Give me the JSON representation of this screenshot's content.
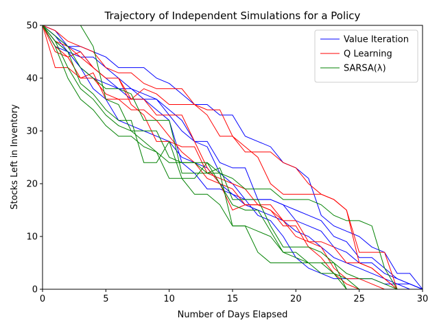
{
  "chart_data": {
    "type": "line",
    "title": "Trajectory of Independent Simulations for a Policy",
    "xlabel": "Number of Days Elapsed",
    "ylabel": "Stocks Left in Inventory",
    "xlim": [
      0,
      30
    ],
    "ylim": [
      0,
      50
    ],
    "xticks": [
      "0",
      "5",
      "10",
      "15",
      "20",
      "25",
      "30"
    ],
    "yticks": [
      "0",
      "10",
      "20",
      "30",
      "40",
      "50"
    ],
    "grid": false,
    "legend_position": "top-right",
    "legend": [
      {
        "name": "Value Iteration",
        "color": "#0000ff"
      },
      {
        "name": "Q Learning",
        "color": "#ff0000"
      },
      {
        "name": "SARSA(λ)",
        "color": "#008000"
      }
    ],
    "series": [
      {
        "group": "Value Iteration",
        "color": "#0000ff",
        "x": [
          0,
          1,
          2,
          3,
          4,
          5,
          6,
          7,
          8,
          9,
          10,
          11,
          12,
          13,
          14,
          15,
          16,
          17,
          18,
          19,
          20,
          21,
          22,
          23,
          24,
          25,
          26,
          27,
          28,
          29,
          30
        ],
        "y": [
          50,
          49,
          46,
          46,
          45,
          44,
          42,
          42,
          42,
          40,
          39,
          37,
          35,
          35,
          33,
          33,
          29,
          28,
          27,
          24,
          23,
          21,
          14,
          12,
          11,
          10,
          8,
          7,
          3,
          3,
          0
        ]
      },
      {
        "group": "Value Iteration",
        "color": "#0000ff",
        "x": [
          0,
          1,
          2,
          3,
          4,
          5,
          6,
          7,
          8,
          9,
          10,
          11,
          12,
          13,
          14,
          15,
          16,
          17,
          18,
          19,
          20,
          21,
          22,
          23,
          24,
          25,
          26,
          27,
          28,
          29,
          30
        ],
        "y": [
          50,
          48,
          45,
          44,
          44,
          42,
          40,
          38,
          37,
          36,
          33,
          30,
          28,
          28,
          24,
          23,
          23,
          17,
          17,
          16,
          15,
          14,
          13,
          10,
          9,
          6,
          6,
          4,
          2,
          1,
          0
        ]
      },
      {
        "group": "Value Iteration",
        "color": "#0000ff",
        "x": [
          0,
          1,
          2,
          3,
          4,
          5,
          6,
          7,
          8,
          9,
          10,
          11,
          12,
          13,
          14,
          15,
          16,
          17,
          18,
          19,
          20,
          21,
          22,
          23,
          24,
          25,
          26,
          27,
          28,
          29,
          30
        ],
        "y": [
          50,
          48,
          46,
          45,
          42,
          40,
          38,
          36,
          36,
          36,
          34,
          32,
          28,
          27,
          22,
          20,
          17,
          17,
          17,
          16,
          13,
          12,
          11,
          8,
          7,
          5,
          5,
          3,
          2,
          1,
          0
        ]
      },
      {
        "group": "Value Iteration",
        "color": "#0000ff",
        "x": [
          0,
          1,
          2,
          3,
          4,
          5,
          6,
          7,
          8,
          9,
          10,
          11,
          12,
          13,
          14,
          15,
          16,
          17,
          18,
          19,
          20,
          21,
          22,
          23,
          24,
          25,
          26,
          27,
          28,
          29,
          30
        ],
        "y": [
          50,
          47,
          45,
          42,
          40,
          39,
          38,
          38,
          36,
          34,
          32,
          24,
          22,
          19,
          19,
          18,
          16,
          15,
          14,
          13,
          11,
          10,
          8,
          6,
          5,
          4,
          3,
          2,
          1,
          1,
          0
        ]
      },
      {
        "group": "Value Iteration",
        "color": "#0000ff",
        "x": [
          0,
          1,
          2,
          3,
          4,
          5,
          6,
          7,
          8,
          9,
          10,
          11,
          12,
          13,
          14,
          15,
          16,
          17,
          18,
          19,
          20,
          21,
          22,
          23,
          24,
          25,
          26,
          27,
          28,
          29,
          30
        ],
        "y": [
          50,
          46,
          45,
          42,
          38,
          36,
          32,
          31,
          30,
          29,
          28,
          25,
          24,
          23,
          20,
          18,
          17,
          14,
          13,
          10,
          6,
          4,
          3,
          2,
          2,
          2,
          2,
          1,
          1,
          0,
          0
        ]
      },
      {
        "group": "Q Learning",
        "color": "#ff0000",
        "x": [
          0,
          1,
          2,
          3,
          4,
          5,
          6,
          7,
          8,
          9,
          10,
          11,
          12,
          13,
          14,
          15,
          16,
          17,
          18,
          19,
          20,
          21,
          22,
          23,
          24,
          25,
          26,
          27,
          28,
          29,
          30
        ],
        "y": [
          50,
          49,
          47,
          46,
          45,
          42,
          41,
          41,
          39,
          38,
          38,
          38,
          35,
          34,
          34,
          29,
          26,
          26,
          26,
          24,
          23,
          20,
          18,
          17,
          15,
          7,
          7,
          7,
          0,
          0,
          0
        ]
      },
      {
        "group": "Q Learning",
        "color": "#ff0000",
        "x": [
          0,
          1,
          2,
          3,
          4,
          5,
          6,
          7,
          8,
          9,
          10,
          11,
          12,
          13,
          14,
          15,
          16,
          17,
          18,
          19,
          20,
          21,
          22,
          23,
          24,
          25,
          26,
          27,
          28,
          29,
          30
        ],
        "y": [
          50,
          47,
          46,
          44,
          42,
          40,
          40,
          36,
          38,
          37,
          35,
          35,
          35,
          33,
          29,
          29,
          27,
          25,
          20,
          18,
          18,
          18,
          18,
          17,
          15,
          5,
          4,
          2,
          0,
          0,
          0
        ]
      },
      {
        "group": "Q Learning",
        "color": "#ff0000",
        "x": [
          0,
          1,
          2,
          3,
          4,
          5,
          6,
          7,
          8,
          9,
          10,
          11,
          12,
          13,
          14,
          15,
          16,
          17,
          18,
          19,
          20,
          21,
          22,
          23,
          24,
          25,
          26,
          27,
          28,
          29,
          30
        ],
        "y": [
          50,
          46,
          44,
          45,
          42,
          40,
          40,
          35,
          33,
          28,
          28,
          27,
          27,
          22,
          21,
          20,
          19,
          16,
          16,
          13,
          13,
          9,
          9,
          8,
          5,
          5,
          4,
          2,
          0,
          0,
          0
        ]
      },
      {
        "group": "Q Learning",
        "color": "#ff0000",
        "x": [
          0,
          1,
          2,
          3,
          4,
          5,
          6,
          7,
          8,
          9,
          10,
          11,
          12,
          13,
          14,
          15,
          16,
          17,
          18,
          19,
          20,
          21,
          22,
          23,
          24,
          25,
          26,
          27,
          28,
          29,
          30
        ],
        "y": [
          50,
          45,
          44,
          40,
          41,
          36,
          36,
          36,
          36,
          33,
          33,
          33,
          28,
          23,
          20,
          19,
          16,
          16,
          15,
          13,
          10,
          9,
          8,
          4,
          2,
          2,
          1,
          0,
          0,
          0,
          0
        ]
      },
      {
        "group": "Q Learning",
        "color": "#ff0000",
        "x": [
          0,
          1,
          2,
          3,
          4,
          5,
          6,
          7,
          8,
          9,
          10,
          11,
          12,
          13,
          14,
          15,
          16,
          17,
          18,
          19,
          20,
          21,
          22,
          23,
          24,
          25,
          26,
          27,
          28,
          29,
          30
        ],
        "y": [
          50,
          42,
          42,
          40,
          40,
          37,
          36,
          34,
          34,
          32,
          29,
          26,
          24,
          21,
          20,
          15,
          16,
          16,
          15,
          12,
          12,
          8,
          6,
          3,
          1,
          0,
          0,
          0,
          0,
          0,
          0
        ]
      },
      {
        "group": "SARSA(λ)",
        "color": "#008000",
        "x": [
          3,
          4,
          5,
          6,
          7,
          8,
          9,
          10,
          11,
          12,
          13,
          14,
          15,
          16,
          17,
          18,
          19,
          20,
          21,
          22,
          23,
          24,
          25,
          26,
          27,
          28,
          29,
          30
        ],
        "y": [
          50,
          46,
          36,
          35,
          30,
          30,
          30,
          25,
          24,
          24,
          22,
          22,
          21,
          19,
          19,
          19,
          17,
          17,
          17,
          16,
          14,
          13,
          13,
          12,
          4,
          0,
          0,
          0
        ]
      },
      {
        "group": "SARSA(λ)",
        "color": "#008000",
        "x": [
          0,
          1,
          2,
          3,
          4,
          5,
          6,
          7,
          8,
          9,
          10,
          11,
          12,
          13,
          14,
          15,
          16,
          17,
          18,
          19,
          20,
          21,
          22,
          23,
          24,
          25,
          26,
          27,
          28,
          29,
          30
        ],
        "y": [
          50,
          48,
          46,
          42,
          40,
          38,
          38,
          37,
          32,
          32,
          32,
          22,
          22,
          22,
          23,
          17,
          17,
          17,
          12,
          8,
          8,
          8,
          7,
          5,
          3,
          2,
          2,
          1,
          0,
          0,
          0
        ]
      },
      {
        "group": "SARSA(λ)",
        "color": "#008000",
        "x": [
          0,
          1,
          2,
          3,
          4,
          5,
          6,
          7,
          8,
          9,
          10,
          11,
          12,
          13,
          14,
          15,
          16,
          17,
          18,
          19,
          20,
          21,
          22,
          23,
          24,
          25,
          26,
          27,
          28,
          29,
          30
        ],
        "y": [
          50,
          47,
          45,
          39,
          37,
          34,
          32,
          32,
          24,
          24,
          28,
          21,
          21,
          24,
          22,
          12,
          12,
          11,
          10,
          7,
          7,
          5,
          5,
          3,
          2,
          0,
          0,
          0,
          0,
          0,
          0
        ]
      },
      {
        "group": "SARSA(λ)",
        "color": "#008000",
        "x": [
          0,
          1,
          2,
          3,
          4,
          5,
          6,
          7,
          8,
          9,
          10,
          11,
          12,
          13,
          14,
          15,
          16,
          17,
          18,
          19,
          20,
          21,
          22,
          23,
          24,
          25,
          26,
          27,
          28,
          29,
          30
        ],
        "y": [
          50,
          46,
          40,
          36,
          34,
          31,
          29,
          29,
          27,
          26,
          24,
          24,
          24,
          24,
          20,
          16,
          15,
          15,
          11,
          7,
          6,
          5,
          3,
          3,
          0,
          0,
          0,
          0,
          0,
          0,
          0
        ]
      },
      {
        "group": "SARSA(λ)",
        "color": "#008000",
        "x": [
          0,
          1,
          2,
          3,
          4,
          5,
          6,
          7,
          8,
          9,
          10,
          11,
          12,
          13,
          14,
          15,
          16,
          17,
          18,
          19,
          20,
          21,
          22,
          23,
          24,
          25,
          26,
          27,
          28,
          29,
          30
        ],
        "y": [
          50,
          47,
          42,
          38,
          36,
          33,
          31,
          30,
          28,
          26,
          21,
          21,
          18,
          18,
          16,
          12,
          12,
          7,
          5,
          5,
          5,
          5,
          5,
          5,
          0,
          0,
          0,
          0,
          0,
          0,
          0
        ]
      }
    ]
  }
}
